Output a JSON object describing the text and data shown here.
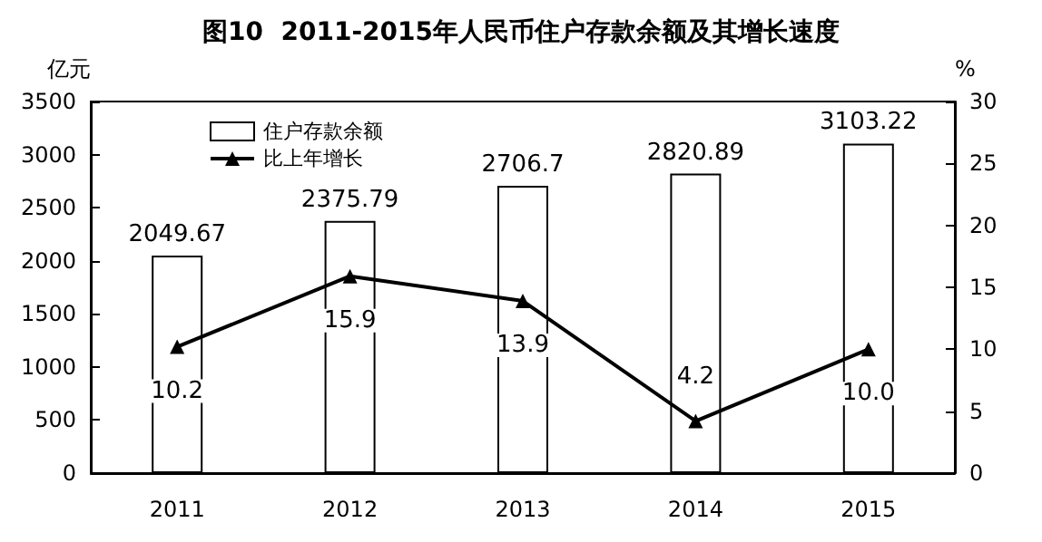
{
  "chart_data": {
    "type": "bar",
    "title": "图10  2011-2015年人民币住户存款余额及其增长速度",
    "ylabel": "亿元",
    "y2label": "%",
    "categories": [
      "2011",
      "2012",
      "2013",
      "2014",
      "2015"
    ],
    "series": [
      {
        "name": "住户存款余额",
        "color": "#ffffff",
        "values": [
          2049.67,
          2375.79,
          2706.7,
          2820.89,
          3103.22
        ],
        "value_labels": [
          "2049.67",
          "2375.79",
          "2706.7",
          "2820.89",
          "3103.22"
        ]
      },
      {
        "name": "比上年增长",
        "type": "line",
        "axis": "y2",
        "color": "#000000",
        "values": [
          10.2,
          15.9,
          13.9,
          4.2,
          10.0
        ],
        "value_labels": [
          "10.2",
          "15.9",
          "13.9",
          "4.2",
          "10.0"
        ]
      }
    ],
    "ylim": [
      0,
      3500
    ],
    "yticks": [
      0,
      500,
      1000,
      1500,
      2000,
      2500,
      3000,
      3500
    ],
    "y2lim": [
      0,
      30
    ],
    "y2ticks": [
      0,
      5,
      10,
      15,
      20,
      25,
      30
    ],
    "legend": "top left",
    "grid": false,
    "marker": "triangle",
    "line_style": "solid"
  }
}
